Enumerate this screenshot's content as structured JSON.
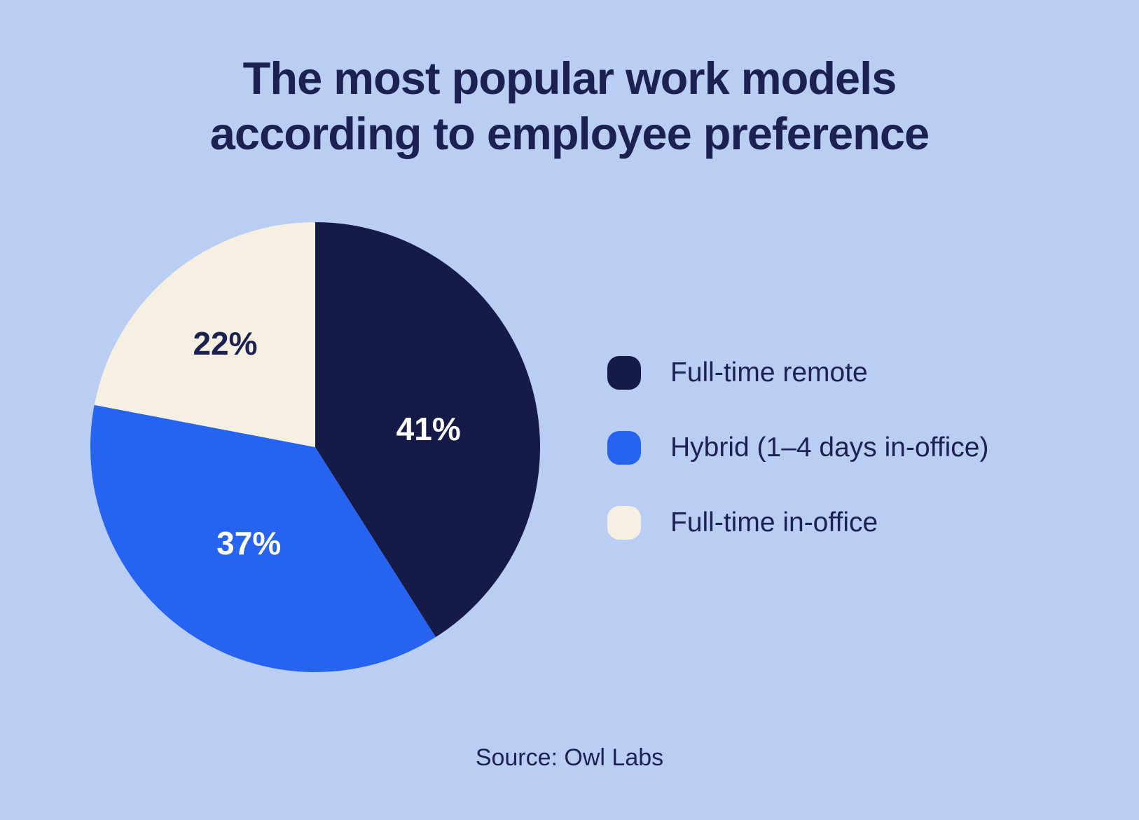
{
  "page": {
    "background": "#BACDF3",
    "text_color": "#1B2150"
  },
  "title": {
    "lines": [
      "The most popular work models",
      "according to employee preference"
    ]
  },
  "chart_data": {
    "type": "pie",
    "title": "The most popular work models according to employee preference",
    "start_angle_deg": 0,
    "direction": "clockwise",
    "legend_position": "right",
    "source": "Source: Owl Labs",
    "slices": [
      {
        "label": "Full-time remote",
        "value": 41,
        "display": "41%",
        "color": "#151A47",
        "label_color": "#FFFFFF",
        "label_angle_deg": 81,
        "label_radius": 0.51
      },
      {
        "label": "Hybrid (1–4 days in-office)",
        "value": 37,
        "display": "37%",
        "color": "#2563F0",
        "label_color": "#FFFFFF",
        "label_angle_deg": 214.6,
        "label_radius": 0.52
      },
      {
        "label": "Full-time in-office",
        "value": 22,
        "display": "22%",
        "color": "#F5F0E1",
        "label_color": "#1B2150",
        "label_angle_deg": 319,
        "label_radius": 0.61
      }
    ]
  }
}
